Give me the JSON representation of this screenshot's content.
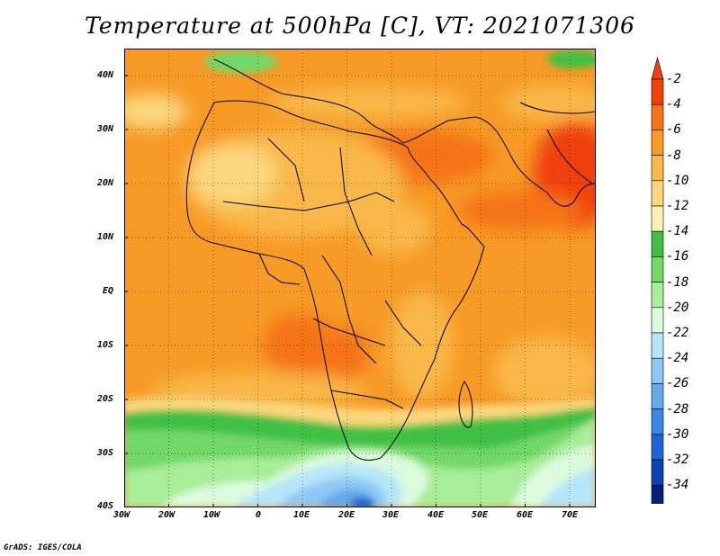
{
  "title": "Temperature at 500hPa [C], VT: 2021071306",
  "credit": "GrADS: IGES/COLA",
  "map": {
    "projection": "latlon",
    "lon_range": [
      -30,
      76
    ],
    "lat_range": [
      -40,
      45
    ],
    "lon_ticks": [
      "30W",
      "20W",
      "10W",
      "0",
      "10E",
      "20E",
      "30E",
      "40E",
      "50E",
      "60E",
      "70E"
    ],
    "lat_ticks": [
      "40N",
      "30N",
      "20N",
      "10N",
      "EQ",
      "10S",
      "20S",
      "30S",
      "40S"
    ],
    "field": "Temperature at 500hPa",
    "units": "C",
    "valid_time": "2021071306"
  },
  "colorbar": {
    "labels": [
      "-2",
      "-4",
      "-6",
      "-8",
      "-10",
      "-12",
      "-14",
      "-16",
      "-18",
      "-20",
      "-22",
      "-24",
      "-26",
      "-28",
      "-30",
      "-32",
      "-34"
    ],
    "colors": [
      "#f0410a",
      "#f57314",
      "#f79a26",
      "#f9b849",
      "#fcd67d",
      "#fdf0b6",
      "#3fc044",
      "#72d867",
      "#a8ed98",
      "#dcfbde",
      "#b6e6f9",
      "#8ec8f5",
      "#64a9ee",
      "#3a88e5",
      "#1e64d2",
      "#0d42b0",
      "#061e78"
    ]
  },
  "chart_data": {
    "type": "heatmap",
    "title": "Temperature at 500hPa [C], VT: 2021071306",
    "xticks": [
      "30W",
      "20W",
      "10W",
      "0",
      "10E",
      "20E",
      "30E",
      "40E",
      "50E",
      "60E",
      "70E"
    ],
    "yticks": [
      "40N",
      "30N",
      "20N",
      "10N",
      "EQ",
      "10S",
      "20S",
      "30S",
      "40S"
    ],
    "color_levels": [
      -2,
      -4,
      -6,
      -8,
      -10,
      -12,
      -14,
      -16,
      -18,
      -20,
      -22,
      -24,
      -26,
      -28,
      -30,
      -32,
      -34
    ]
  }
}
